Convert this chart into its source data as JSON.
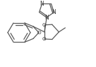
{
  "lc": "#5a5a5a",
  "lw": 0.9,
  "fs": 5.2,
  "bg": "white",
  "xlim": [
    0,
    136
  ],
  "ylim": [
    0,
    96
  ]
}
